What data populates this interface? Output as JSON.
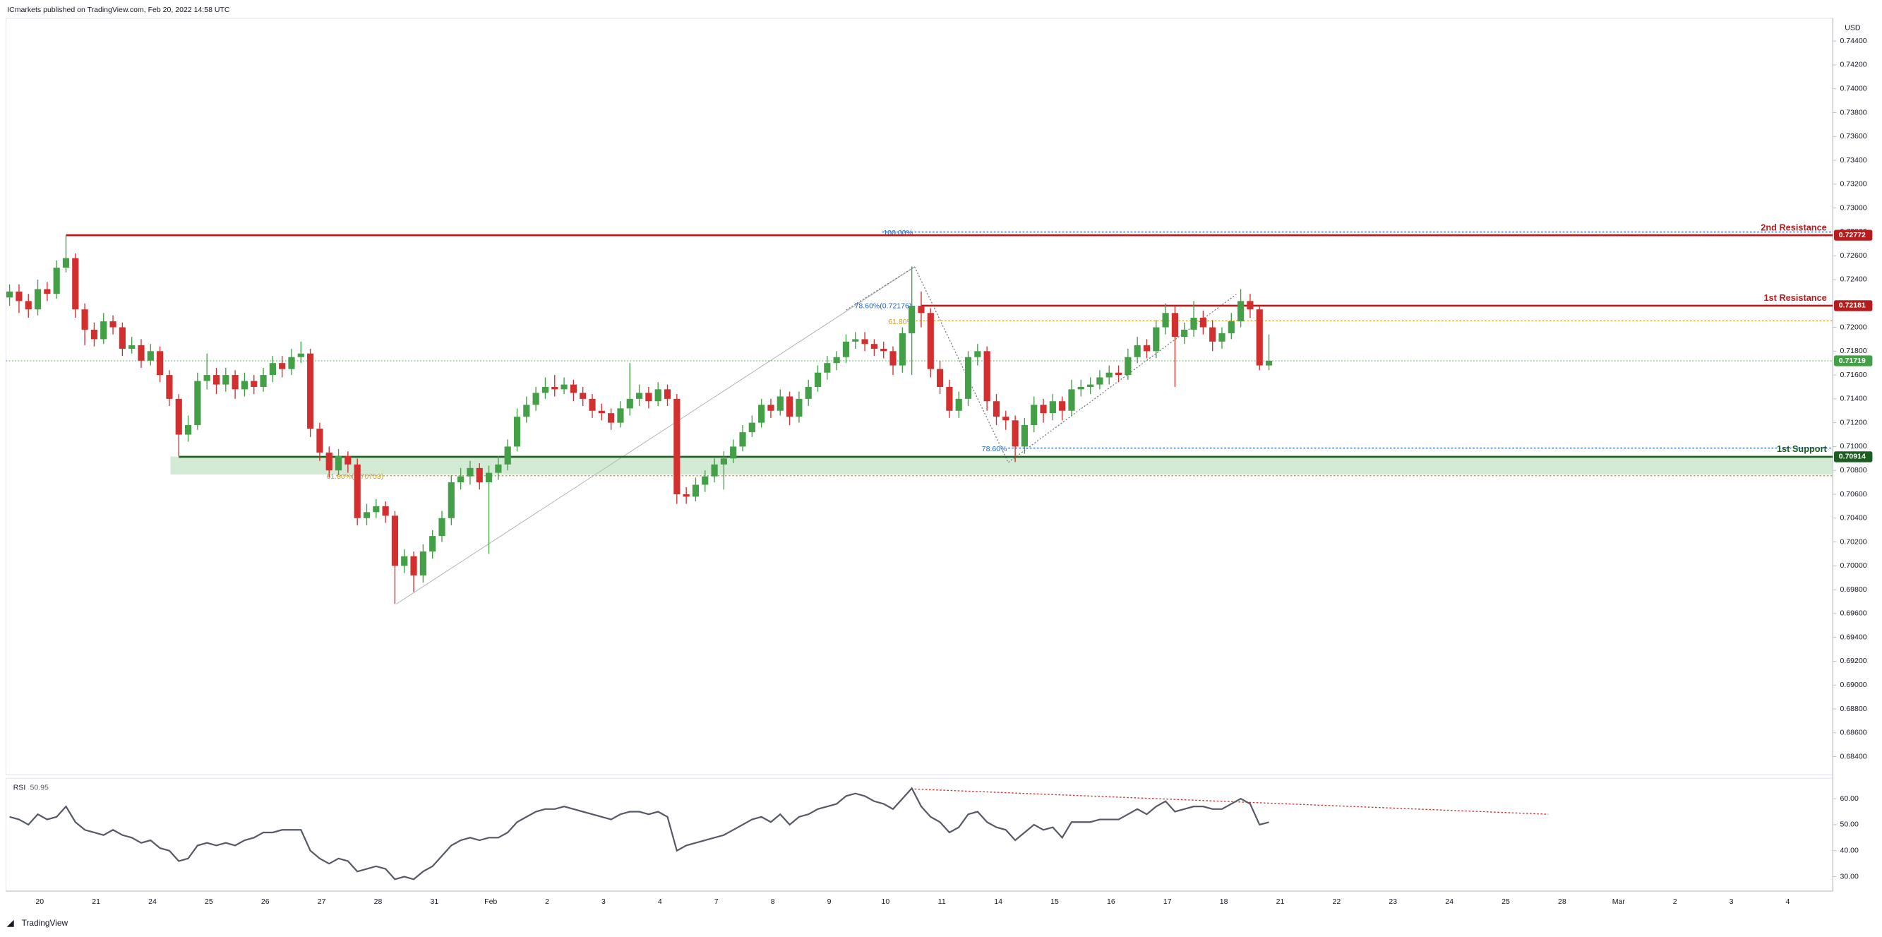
{
  "header": "ICmarkets published on TradingView.com, Feb 20, 2022 14:58 UTC",
  "footer": "TradingView",
  "currency": "USD",
  "chart_data": {
    "type": "candlestick",
    "up_color": "#43a047",
    "down_color": "#d32f2f",
    "ylim": [
      0.68249,
      0.74591
    ],
    "yticks": [
      {
        "value": 0.744,
        "label": "0.74400"
      },
      {
        "value": 0.742,
        "label": "0.74200"
      },
      {
        "value": 0.74,
        "label": "0.74000"
      },
      {
        "value": 0.738,
        "label": "0.73800"
      },
      {
        "value": 0.736,
        "label": "0.73600"
      },
      {
        "value": 0.734,
        "label": "0.73400"
      },
      {
        "value": 0.732,
        "label": "0.73200"
      },
      {
        "value": 0.73,
        "label": "0.73000"
      },
      {
        "value": 0.728,
        "label": "0.72800"
      },
      {
        "value": 0.726,
        "label": "0.72600"
      },
      {
        "value": 0.724,
        "label": "0.72400"
      },
      {
        "value": 0.722,
        "label": "0.72200"
      },
      {
        "value": 0.72,
        "label": "0.72000"
      },
      {
        "value": 0.718,
        "label": "0.71800"
      },
      {
        "value": 0.716,
        "label": "0.71600"
      },
      {
        "value": 0.714,
        "label": "0.71400"
      },
      {
        "value": 0.712,
        "label": "0.71200"
      },
      {
        "value": 0.71,
        "label": "0.71000"
      },
      {
        "value": 0.708,
        "label": "0.70800"
      },
      {
        "value": 0.706,
        "label": "0.70600"
      },
      {
        "value": 0.704,
        "label": "0.70400"
      },
      {
        "value": 0.702,
        "label": "0.70200"
      },
      {
        "value": 0.7,
        "label": "0.70000"
      },
      {
        "value": 0.698,
        "label": "0.69800"
      },
      {
        "value": 0.696,
        "label": "0.69600"
      },
      {
        "value": 0.694,
        "label": "0.69400"
      },
      {
        "value": 0.692,
        "label": "0.69200"
      },
      {
        "value": 0.69,
        "label": "0.69000"
      },
      {
        "value": 0.688,
        "label": "0.68800"
      },
      {
        "value": 0.686,
        "label": "0.68600"
      },
      {
        "value": 0.684,
        "label": "0.68400"
      }
    ],
    "grid": false,
    "xtick_labels": [
      "20",
      "21",
      "24",
      "25",
      "26",
      "27",
      "28",
      "31",
      "Feb",
      "2",
      "3",
      "4",
      "7",
      "8",
      "9",
      "10",
      "11",
      "14",
      "15",
      "16",
      "17",
      "18",
      "21",
      "22",
      "23",
      "24",
      "25",
      "28",
      "Mar",
      "2",
      "3",
      "4"
    ],
    "candles": [
      [
        0.7225,
        0.7236,
        0.7218,
        0.723
      ],
      [
        0.723,
        0.7236,
        0.7212,
        0.7222
      ],
      [
        0.7222,
        0.7228,
        0.7208,
        0.7215
      ],
      [
        0.7215,
        0.724,
        0.721,
        0.7232
      ],
      [
        0.7232,
        0.7238,
        0.7222,
        0.7228
      ],
      [
        0.7228,
        0.7256,
        0.7224,
        0.725
      ],
      [
        0.725,
        0.7277,
        0.7246,
        0.7258
      ],
      [
        0.7258,
        0.7262,
        0.7208,
        0.7215
      ],
      [
        0.7215,
        0.722,
        0.7185,
        0.7198
      ],
      [
        0.7198,
        0.7204,
        0.7184,
        0.719
      ],
      [
        0.719,
        0.7212,
        0.7186,
        0.7205
      ],
      [
        0.7205,
        0.721,
        0.7194,
        0.72
      ],
      [
        0.72,
        0.7204,
        0.7176,
        0.7182
      ],
      [
        0.7182,
        0.7192,
        0.7178,
        0.7185
      ],
      [
        0.7185,
        0.719,
        0.7166,
        0.7172
      ],
      [
        0.7172,
        0.7186,
        0.7168,
        0.718
      ],
      [
        0.718,
        0.7184,
        0.7154,
        0.716
      ],
      [
        0.716,
        0.7164,
        0.7134,
        0.714
      ],
      [
        0.714,
        0.7144,
        0.7092,
        0.711
      ],
      [
        0.711,
        0.7126,
        0.7104,
        0.7118
      ],
      [
        0.7118,
        0.7162,
        0.7114,
        0.7155
      ],
      [
        0.7155,
        0.7178,
        0.7148,
        0.716
      ],
      [
        0.716,
        0.7166,
        0.7144,
        0.7152
      ],
      [
        0.7152,
        0.7166,
        0.7146,
        0.716
      ],
      [
        0.716,
        0.7164,
        0.714,
        0.7148
      ],
      [
        0.7148,
        0.7162,
        0.7142,
        0.7155
      ],
      [
        0.7155,
        0.716,
        0.7144,
        0.715
      ],
      [
        0.715,
        0.7166,
        0.7146,
        0.716
      ],
      [
        0.716,
        0.7176,
        0.7154,
        0.717
      ],
      [
        0.717,
        0.7176,
        0.7158,
        0.7165
      ],
      [
        0.7165,
        0.7182,
        0.716,
        0.7175
      ],
      [
        0.7175,
        0.7188,
        0.717,
        0.7178
      ],
      [
        0.7178,
        0.7182,
        0.7108,
        0.7115
      ],
      [
        0.7115,
        0.712,
        0.7088,
        0.7095
      ],
      [
        0.7095,
        0.71,
        0.7074,
        0.708
      ],
      [
        0.708,
        0.7098,
        0.7076,
        0.7092
      ],
      [
        0.7092,
        0.7096,
        0.7078,
        0.7085
      ],
      [
        0.7085,
        0.709,
        0.7034,
        0.704
      ],
      [
        0.704,
        0.7052,
        0.7034,
        0.7045
      ],
      [
        0.7045,
        0.7056,
        0.704,
        0.705
      ],
      [
        0.705,
        0.7054,
        0.7036,
        0.7042
      ],
      [
        0.7042,
        0.7046,
        0.6968,
        0.7
      ],
      [
        0.7,
        0.7014,
        0.6994,
        0.7008
      ],
      [
        0.7008,
        0.7012,
        0.6978,
        0.6992
      ],
      [
        0.6992,
        0.7018,
        0.6986,
        0.7012
      ],
      [
        0.7012,
        0.703,
        0.7006,
        0.7025
      ],
      [
        0.7025,
        0.7046,
        0.702,
        0.704
      ],
      [
        0.704,
        0.7076,
        0.7034,
        0.707
      ],
      [
        0.707,
        0.7082,
        0.7064,
        0.7075
      ],
      [
        0.7075,
        0.7088,
        0.7068,
        0.7082
      ],
      [
        0.7082,
        0.7086,
        0.7064,
        0.707
      ],
      [
        0.707,
        0.7084,
        0.701,
        0.7078
      ],
      [
        0.7078,
        0.7092,
        0.7072,
        0.7085
      ],
      [
        0.7085,
        0.7106,
        0.708,
        0.71
      ],
      [
        0.71,
        0.7132,
        0.7096,
        0.7125
      ],
      [
        0.7125,
        0.7142,
        0.712,
        0.7135
      ],
      [
        0.7135,
        0.715,
        0.713,
        0.7145
      ],
      [
        0.7145,
        0.7158,
        0.714,
        0.715
      ],
      [
        0.715,
        0.716,
        0.7142,
        0.7148
      ],
      [
        0.7148,
        0.7158,
        0.7144,
        0.7152
      ],
      [
        0.7152,
        0.7156,
        0.7138,
        0.7145
      ],
      [
        0.7145,
        0.715,
        0.7134,
        0.714
      ],
      [
        0.714,
        0.7144,
        0.7124,
        0.713
      ],
      [
        0.713,
        0.7136,
        0.7122,
        0.7128
      ],
      [
        0.7128,
        0.7132,
        0.7114,
        0.712
      ],
      [
        0.712,
        0.7138,
        0.7116,
        0.7132
      ],
      [
        0.7132,
        0.717,
        0.7126,
        0.714
      ],
      [
        0.714,
        0.7152,
        0.7134,
        0.7145
      ],
      [
        0.7145,
        0.715,
        0.7132,
        0.7138
      ],
      [
        0.7138,
        0.7154,
        0.7134,
        0.7148
      ],
      [
        0.7148,
        0.7152,
        0.7134,
        0.714
      ],
      [
        0.714,
        0.7144,
        0.7052,
        0.706
      ],
      [
        0.706,
        0.7066,
        0.7052,
        0.7058
      ],
      [
        0.7058,
        0.7074,
        0.7054,
        0.7068
      ],
      [
        0.7068,
        0.708,
        0.7062,
        0.7075
      ],
      [
        0.7075,
        0.709,
        0.707,
        0.7085
      ],
      [
        0.7085,
        0.7096,
        0.7064,
        0.709
      ],
      [
        0.709,
        0.7106,
        0.7086,
        0.71
      ],
      [
        0.71,
        0.7118,
        0.7096,
        0.7112
      ],
      [
        0.7112,
        0.7126,
        0.7108,
        0.712
      ],
      [
        0.712,
        0.714,
        0.7116,
        0.7135
      ],
      [
        0.7135,
        0.714,
        0.7124,
        0.713
      ],
      [
        0.713,
        0.7148,
        0.7126,
        0.7142
      ],
      [
        0.7142,
        0.7146,
        0.7118,
        0.7125
      ],
      [
        0.7125,
        0.7146,
        0.712,
        0.714
      ],
      [
        0.714,
        0.7156,
        0.7134,
        0.715
      ],
      [
        0.715,
        0.7168,
        0.7146,
        0.7162
      ],
      [
        0.7162,
        0.7176,
        0.7156,
        0.717
      ],
      [
        0.717,
        0.718,
        0.7164,
        0.7175
      ],
      [
        0.7175,
        0.7194,
        0.717,
        0.7188
      ],
      [
        0.7188,
        0.7196,
        0.7182,
        0.719
      ],
      [
        0.719,
        0.7196,
        0.718,
        0.7186
      ],
      [
        0.7186,
        0.719,
        0.7176,
        0.7182
      ],
      [
        0.7182,
        0.7188,
        0.7174,
        0.718
      ],
      [
        0.718,
        0.7184,
        0.716,
        0.7168
      ],
      [
        0.7168,
        0.72,
        0.7162,
        0.7195
      ],
      [
        0.7195,
        0.7251,
        0.716,
        0.7218
      ],
      [
        0.7218,
        0.723,
        0.72,
        0.7212
      ],
      [
        0.7212,
        0.7216,
        0.7158,
        0.7165
      ],
      [
        0.7165,
        0.7172,
        0.7144,
        0.715
      ],
      [
        0.715,
        0.7156,
        0.7124,
        0.713
      ],
      [
        0.713,
        0.7146,
        0.7124,
        0.714
      ],
      [
        0.714,
        0.718,
        0.7134,
        0.7175
      ],
      [
        0.7175,
        0.7186,
        0.7168,
        0.718
      ],
      [
        0.718,
        0.7184,
        0.713,
        0.7138
      ],
      [
        0.7138,
        0.7144,
        0.7118,
        0.7125
      ],
      [
        0.7125,
        0.713,
        0.7114,
        0.7122
      ],
      [
        0.7122,
        0.7126,
        0.7087,
        0.71
      ],
      [
        0.71,
        0.7124,
        0.7094,
        0.7118
      ],
      [
        0.7118,
        0.7142,
        0.7112,
        0.7135
      ],
      [
        0.7135,
        0.714,
        0.712,
        0.7128
      ],
      [
        0.7128,
        0.7144,
        0.7122,
        0.7138
      ],
      [
        0.7138,
        0.7142,
        0.7122,
        0.713
      ],
      [
        0.713,
        0.7156,
        0.7126,
        0.7148
      ],
      [
        0.7148,
        0.7156,
        0.7142,
        0.715
      ],
      [
        0.715,
        0.7158,
        0.7144,
        0.7152
      ],
      [
        0.7152,
        0.7164,
        0.7148,
        0.7158
      ],
      [
        0.7158,
        0.7168,
        0.7152,
        0.7162
      ],
      [
        0.7162,
        0.7168,
        0.7154,
        0.716
      ],
      [
        0.716,
        0.7182,
        0.7156,
        0.7175
      ],
      [
        0.7175,
        0.7192,
        0.717,
        0.7185
      ],
      [
        0.7185,
        0.719,
        0.7174,
        0.718
      ],
      [
        0.718,
        0.7206,
        0.7174,
        0.72
      ],
      [
        0.72,
        0.722,
        0.7194,
        0.7212
      ],
      [
        0.7212,
        0.7218,
        0.715,
        0.7192
      ],
      [
        0.7192,
        0.7204,
        0.7186,
        0.7198
      ],
      [
        0.7198,
        0.7222,
        0.7192,
        0.7208
      ],
      [
        0.7208,
        0.7214,
        0.7194,
        0.72
      ],
      [
        0.72,
        0.7206,
        0.718,
        0.7188
      ],
      [
        0.7188,
        0.72,
        0.7182,
        0.7195
      ],
      [
        0.7195,
        0.7212,
        0.719,
        0.7205
      ],
      [
        0.7205,
        0.7232,
        0.72,
        0.7222
      ],
      [
        0.7222,
        0.7228,
        0.7208,
        0.7215
      ],
      [
        0.7215,
        0.7218,
        0.7164,
        0.7168
      ],
      [
        0.7168,
        0.7194,
        0.7164,
        0.71719
      ]
    ],
    "levels": [
      {
        "name": "2nd Resistance",
        "value": 0.72772,
        "color": "#b71c1c"
      },
      {
        "name": "1st Resistance",
        "value": 0.72181,
        "color": "#b71c1c"
      },
      {
        "name": "1st Support",
        "value": 0.70914,
        "color": "#1b5e20"
      }
    ],
    "last_price": 0.71719,
    "last_price_color": "#43a047",
    "annotations": [
      "100.00%",
      "78.60%(0.72176)",
      "61.80%",
      "78.60%",
      "61.80%(0.70753)"
    ],
    "indicator": {
      "type": "line",
      "name": "RSI",
      "color": "#555a66",
      "ylim": [
        24.46,
        67.85
      ],
      "yticks": [
        {
          "value": 60,
          "label": "60.00"
        },
        {
          "value": 50,
          "label": "50.00"
        },
        {
          "value": 40,
          "label": "40.00"
        },
        {
          "value": 30,
          "label": "30.00"
        }
      ],
      "values": [
        53,
        52,
        50,
        54,
        52,
        53,
        57,
        51,
        48,
        47,
        46,
        48,
        46,
        45,
        43,
        44,
        41,
        40,
        36,
        37,
        42,
        43,
        42,
        43,
        42,
        44,
        45,
        47,
        47,
        48,
        48,
        48,
        40,
        37,
        35,
        37,
        36,
        32,
        33,
        34,
        33,
        29,
        30,
        29,
        32,
        34,
        38,
        42,
        44,
        45,
        44,
        45,
        45,
        47,
        51,
        53,
        55,
        56,
        56,
        57,
        56,
        55,
        54,
        53,
        52,
        54,
        55,
        55,
        54,
        55,
        53,
        40,
        42,
        43,
        44,
        45,
        46,
        48,
        50,
        52,
        53,
        51,
        54,
        50,
        53,
        54,
        56,
        57,
        58,
        61,
        62,
        61,
        59,
        58,
        56,
        60,
        64,
        57,
        53,
        51,
        47,
        49,
        54,
        55,
        51,
        49,
        48,
        44,
        47,
        50,
        48,
        49,
        45,
        51,
        51,
        51,
        52,
        52,
        52,
        54,
        56,
        54,
        57,
        59,
        55,
        56,
        57,
        57,
        56,
        56,
        58,
        60,
        58,
        50,
        50.95
      ]
    }
  }
}
